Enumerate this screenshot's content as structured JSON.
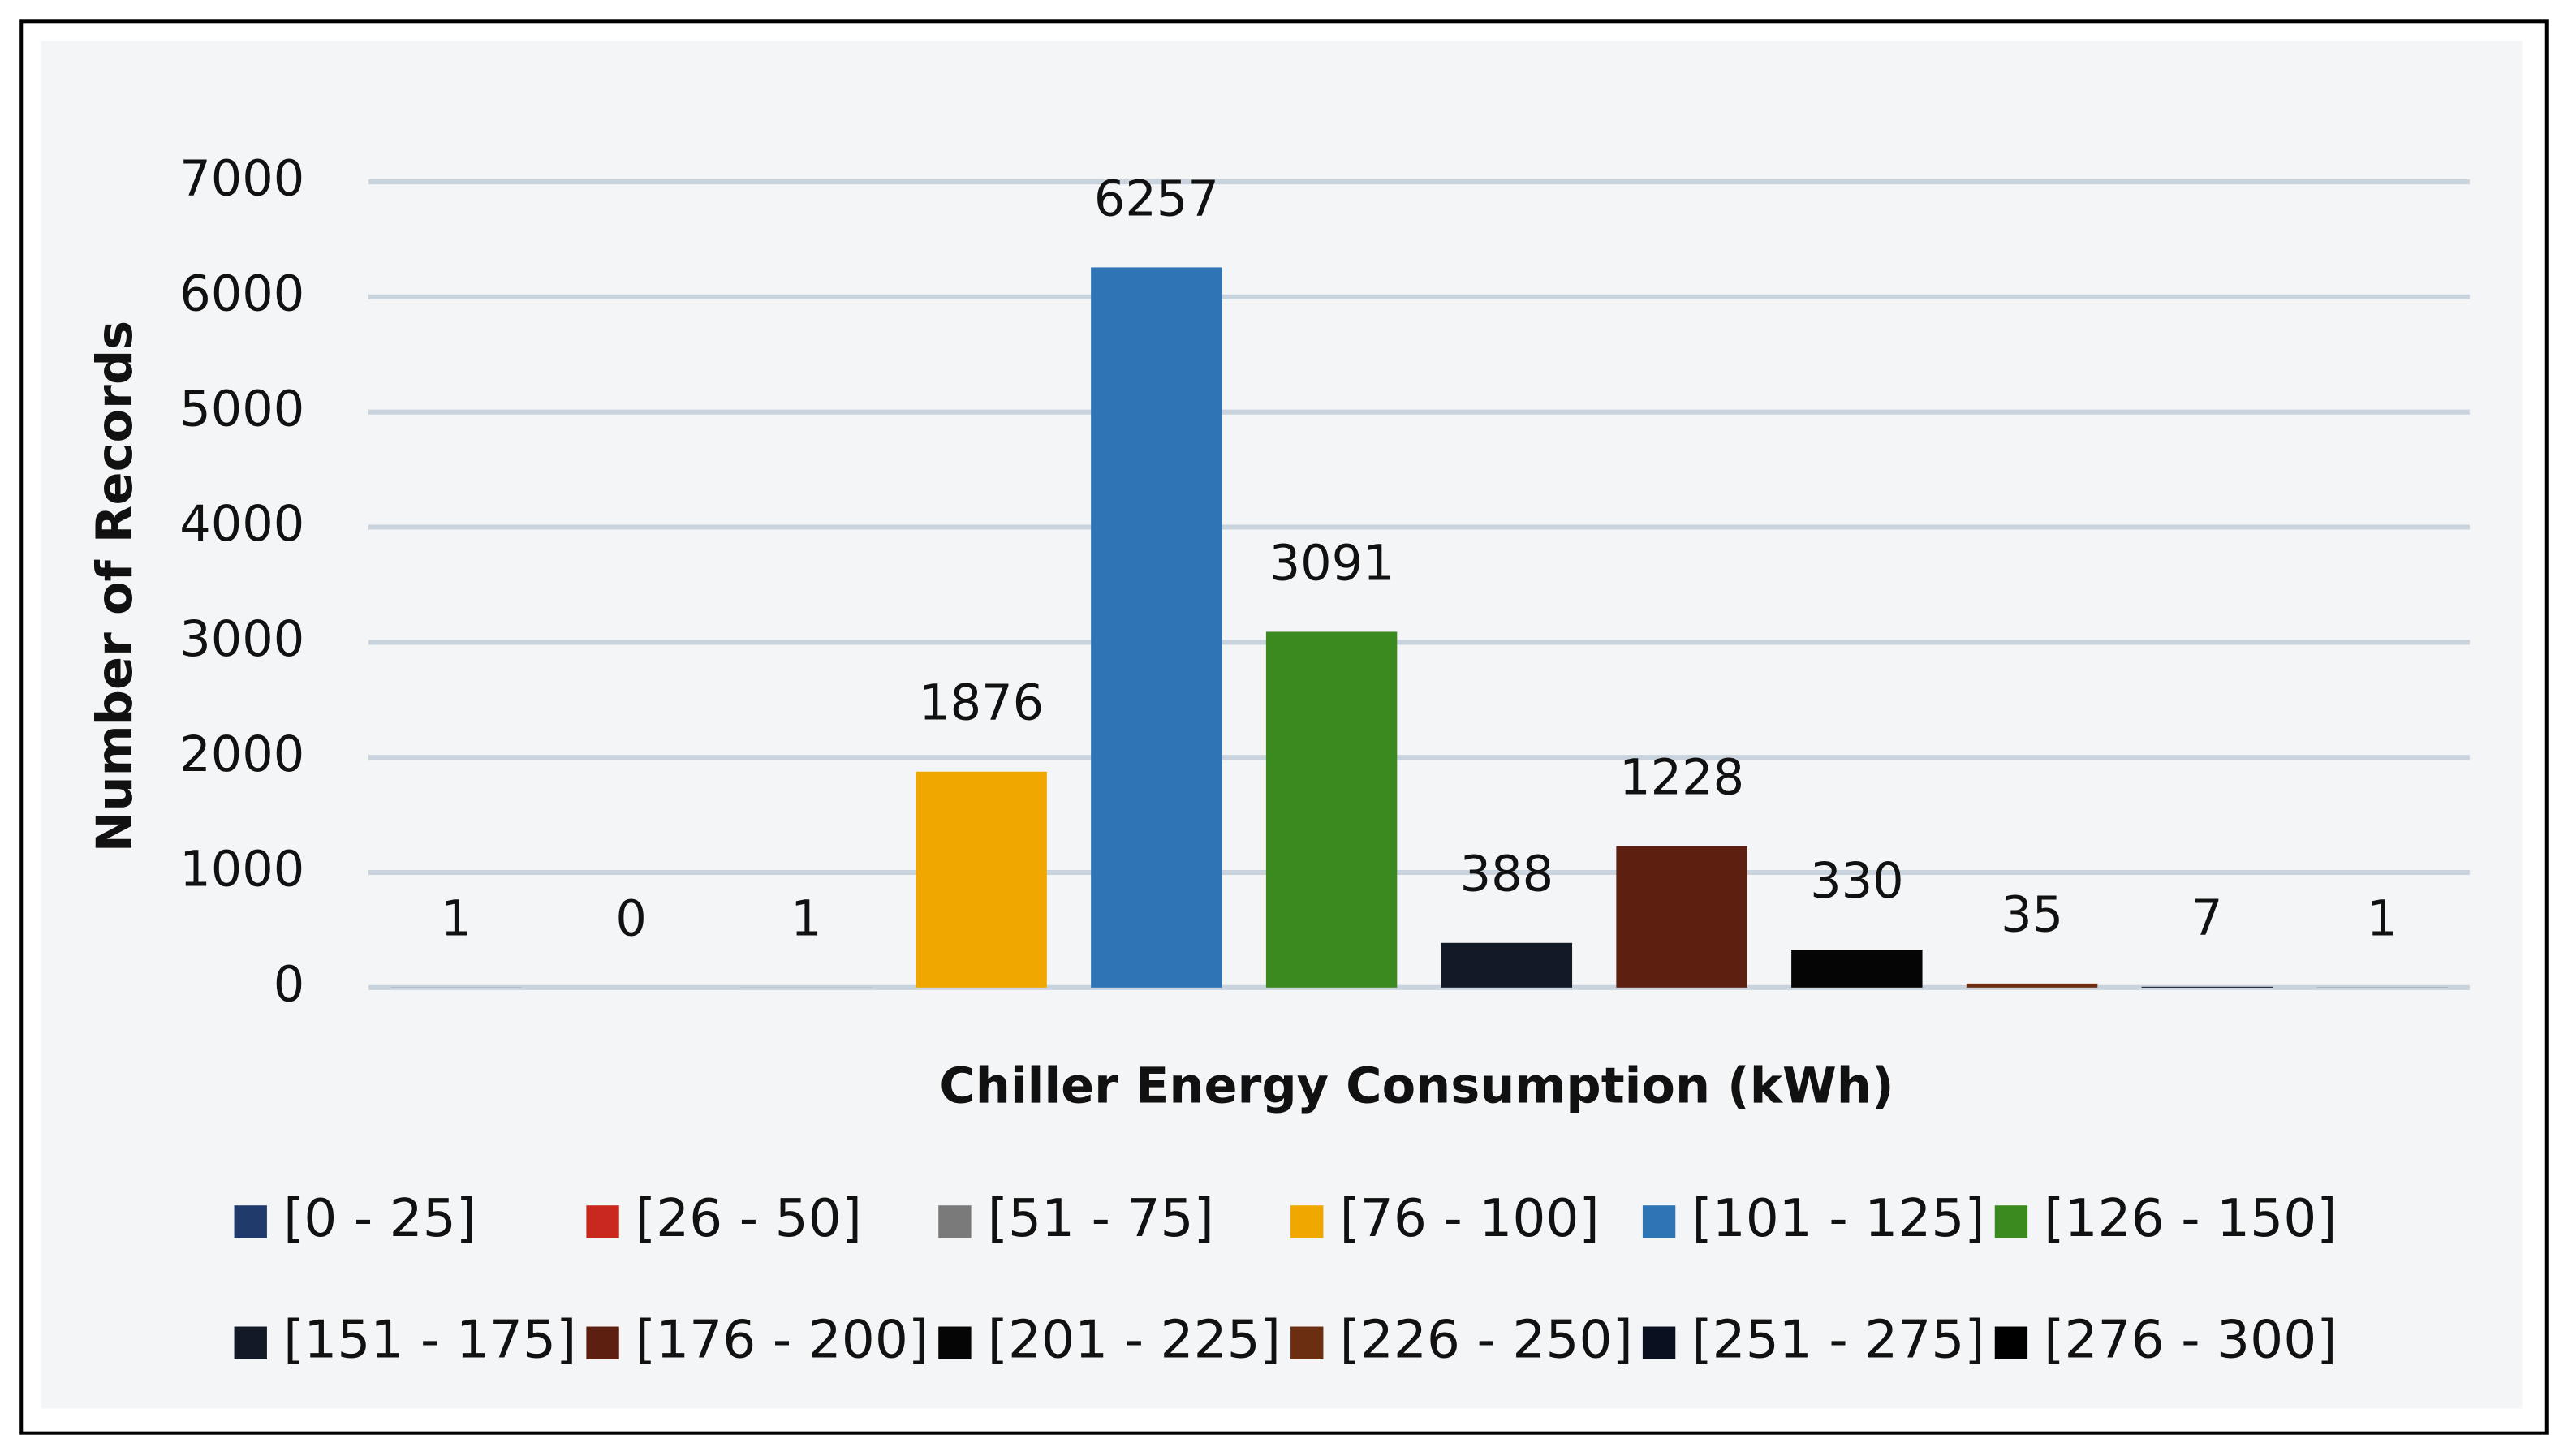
{
  "chart_data": {
    "type": "bar",
    "x_label": "Chiller Energy Consumption (kWh)",
    "y_label": "Number of Records",
    "categories": [
      "[0 - 25]",
      "[26 - 50]",
      "[51 - 75]",
      "[76 - 100]",
      "[101 - 125]",
      "[126 - 150]",
      "[151 - 175]",
      "[176 - 200]",
      "[201 - 225]",
      "[226 - 250]",
      "[251 - 275]",
      "[276 - 300]"
    ],
    "values": [
      1,
      0,
      1,
      1876,
      6257,
      3091,
      388,
      1228,
      330,
      35,
      7,
      1
    ],
    "colors": [
      "#1f3a6b",
      "#c8281e",
      "#7a7a7a",
      "#f0a800",
      "#2e75b6",
      "#3b8a1f",
      "#111a26",
      "#5c1f10",
      "#050505",
      "#6b2e10",
      "#0b1020",
      "#000000"
    ],
    "ylim": [
      0,
      7000
    ],
    "yticks": [
      0,
      1000,
      2000,
      3000,
      4000,
      5000,
      6000,
      7000
    ],
    "grid": true,
    "legend": "bottom"
  }
}
